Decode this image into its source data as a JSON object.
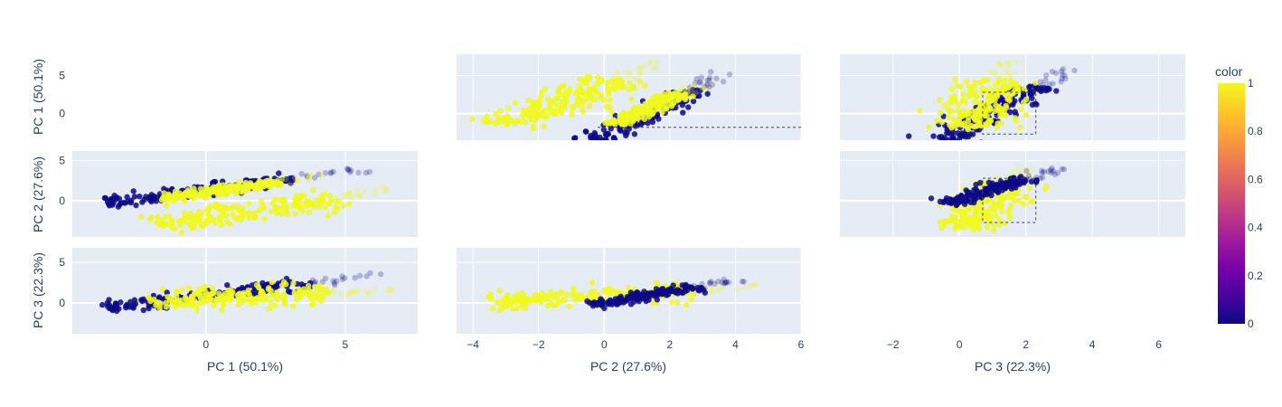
{
  "chart_data": {
    "type": "scatter",
    "subtype": "scatter-matrix (PCA pairs, diagonal hidden)",
    "title": "",
    "dimensions": [
      "PC 1 (50.1%)",
      "PC 2 (27.6%)",
      "PC 3 (22.3%)"
    ],
    "axis_ranges": {
      "PC 1 (50.1%)": [
        -4.8,
        7.6
      ],
      "PC 2 (27.6%)": [
        -4.5,
        6.0
      ],
      "PC 3 (22.3%)": [
        -3.6,
        6.8
      ]
    },
    "row_ranges": {
      "PC 1 (50.1%)": [
        -3.5,
        7.8
      ],
      "PC 2 (27.6%)": [
        -4.5,
        6.2
      ],
      "PC 3 (22.3%)": [
        -3.8,
        6.8
      ]
    },
    "ticks": {
      "PC 1 (50.1%)": [
        0,
        5
      ],
      "PC 2 (27.6%)": [
        -4,
        -2,
        0,
        2,
        4,
        6
      ],
      "PC 3 (22.3%)": [
        -2,
        0,
        2,
        4,
        6
      ]
    },
    "tick_labels": {
      "PC 1 (50.1%)": [
        "0",
        "5"
      ],
      "PC 2 (27.6%)": [
        "−4",
        "−2",
        "0",
        "2",
        "4",
        "6"
      ],
      "PC 3 (22.3%)": [
        "−2",
        "0",
        "2",
        "4",
        "6"
      ]
    },
    "row_tick_labels": {
      "PC 1 (50.1%)": [
        "0",
        "5"
      ],
      "PC 2 (27.6%)": [
        "0",
        "5"
      ],
      "PC 3 (22.3%)": [
        "0",
        "5"
      ]
    },
    "row_ticks": [
      0,
      5
    ],
    "clusters": {
      "PC1-PC2": [
        {
          "color_value": 0,
          "band_start": [
            -3.6,
            -0.2
          ],
          "band_end": [
            3.2,
            2.8
          ],
          "width": 1.0
        },
        {
          "color_value": 1,
          "band_start": [
            -1.5,
            0.3
          ],
          "band_end": [
            2.6,
            2.3
          ],
          "width": 0.7
        },
        {
          "color_value": 1,
          "band_start": [
            -1.6,
            -3.0
          ],
          "band_end": [
            4.6,
            0.4
          ],
          "width": 1.6
        }
      ],
      "PC1-PC3": [
        {
          "color_value": 0,
          "band_start": [
            -3.6,
            -0.6
          ],
          "band_end": [
            3.6,
            2.4
          ],
          "width": 1.0
        },
        {
          "color_value": 1,
          "band_start": [
            -2.0,
            0.3
          ],
          "band_end": [
            4.4,
            1.2
          ],
          "width": 1.8
        }
      ],
      "PC2-PC3": [
        {
          "color_value": 1,
          "band_start": [
            -3.5,
            0.1
          ],
          "band_end": [
            2.6,
            1.5
          ],
          "width": 1.5
        },
        {
          "color_value": 0,
          "band_start": [
            -0.3,
            -0.3
          ],
          "band_end": [
            2.8,
            2.0
          ],
          "width": 0.7
        }
      ]
    },
    "selection_box": {
      "x_range": [
        0.7,
        2.3
      ],
      "y_range": [
        -2.7,
        2.8
      ]
    },
    "outliers_y1": [
      [
        5.6,
        4.6
      ],
      [
        4.8,
        3.9
      ],
      [
        3.9,
        3.3
      ],
      [
        4.1,
        2.3
      ],
      [
        4.4,
        1.7
      ],
      [
        6.0,
        1.4
      ]
    ],
    "colorbar": {
      "title": "color",
      "ticks": [
        0,
        0.2,
        0.4,
        0.6,
        0.8,
        1
      ],
      "tick_labels": [
        "0",
        "0.2",
        "0.4",
        "0.6",
        "0.8",
        "1"
      ],
      "colorscale": [
        "#0d0887",
        "#46039f",
        "#7201a8",
        "#9c179e",
        "#bd3786",
        "#d8576b",
        "#ed7953",
        "#fb9f3a",
        "#fdca26",
        "#f0f921"
      ]
    },
    "grid": true,
    "background": "#e5ecf6",
    "point_colors": {
      "0": "#0d0887",
      "1": "#f0f921"
    }
  }
}
